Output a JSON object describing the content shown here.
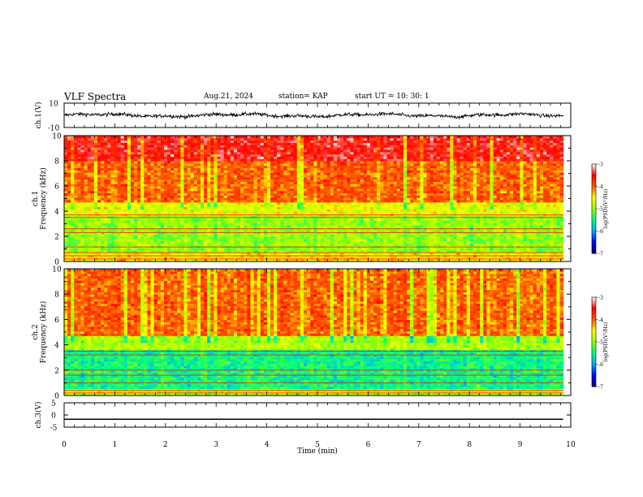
{
  "header": {
    "title": "VLF Spectra",
    "date": "Aug.21, 2024",
    "station": "station= KAP",
    "start_ut": "start  UT =   10: 30: 1"
  },
  "chart_data": [
    {
      "type": "line",
      "panel": "ch1-waveform",
      "ylabel": "ch.1(V)",
      "ylim": [
        -10,
        10
      ],
      "yticks": [
        "10",
        "-10"
      ],
      "xlim": [
        0,
        10
      ],
      "data_end_min": 9.85,
      "approx_amplitude_v": [
        -3,
        3
      ]
    },
    {
      "type": "heatmap",
      "panel": "ch1-spectrogram",
      "ylabel_top": "ch.1",
      "ylabel": "Frequency  (kHz)",
      "ylim": [
        0,
        10
      ],
      "yticks": [
        "0",
        "2",
        "4",
        "6",
        "8",
        "10"
      ],
      "xlim": [
        0,
        10
      ],
      "colorbar": {
        "label": "log(PSD)(V²/Hz)",
        "range": [
          -7,
          -3
        ],
        "ticks": [
          "-3",
          "-4",
          "-5",
          "-6",
          "-7"
        ]
      },
      "approx_log_psd_by_band": [
        {
          "freq_khz": [
            0,
            0.7
          ],
          "value": -4.5
        },
        {
          "freq_khz": [
            0.7,
            3.6
          ],
          "value": -5.0
        },
        {
          "freq_khz": [
            3.6,
            4.8
          ],
          "value": -4.6
        },
        {
          "freq_khz": [
            4.8,
            8.0
          ],
          "value": -4.0
        },
        {
          "freq_khz": [
            8.0,
            10
          ],
          "value": -3.5
        }
      ]
    },
    {
      "type": "heatmap",
      "panel": "ch2-spectrogram",
      "ylabel_top": "ch.2",
      "ylabel": "Frequency  (kHz)",
      "ylim": [
        0,
        10
      ],
      "yticks": [
        "0",
        "2",
        "4",
        "6",
        "8",
        "10"
      ],
      "xlim": [
        0,
        10
      ],
      "colorbar": {
        "label": "log(PSD)(V²/Hz)",
        "range": [
          -7,
          -3
        ],
        "ticks": [
          "-3",
          "-4",
          "-5",
          "-6",
          "-7"
        ]
      },
      "approx_log_psd_by_band": [
        {
          "freq_khz": [
            0,
            0.6
          ],
          "value": -4.8
        },
        {
          "freq_khz": [
            0.6,
            3.6
          ],
          "value": -5.5
        },
        {
          "freq_khz": [
            3.6,
            4.8
          ],
          "value": -4.9
        },
        {
          "freq_khz": [
            4.8,
            10
          ],
          "value": -4.0
        }
      ]
    },
    {
      "type": "line",
      "panel": "ch3-waveform",
      "ylabel": "ch.3(V)",
      "ylim": [
        -5,
        5
      ],
      "yticks": [
        "5",
        "0",
        "-5"
      ],
      "xlabel": "Time  (min)",
      "xlim": [
        0,
        10
      ],
      "xticks": [
        "0",
        "1",
        "2",
        "3",
        "4",
        "5",
        "6",
        "7",
        "8",
        "9",
        "10"
      ],
      "data_end_min": 9.85,
      "approx_band_v": [
        -2,
        -1.5
      ]
    }
  ],
  "colors": {
    "psd_scale": [
      "#000070",
      "#0000ff",
      "#00aaff",
      "#00ff80",
      "#9aff00",
      "#ffff00",
      "#ff5a00",
      "#ff0000",
      "#ffffff"
    ],
    "line": "#000000"
  }
}
